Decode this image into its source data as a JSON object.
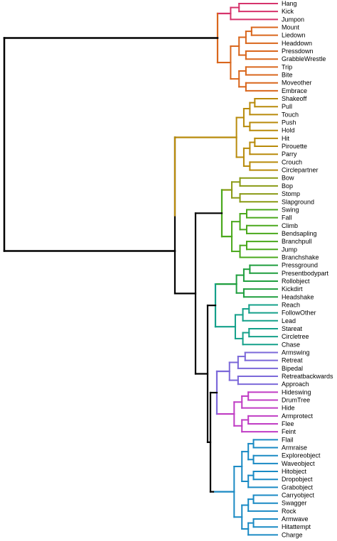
{
  "dendrogram": {
    "root_color": "#000000",
    "clusters": [
      {
        "name": "cluster-magenta-top",
        "color": "#d6336c",
        "leaves": [
          "Hang",
          "Kick",
          "Jumpon"
        ]
      },
      {
        "name": "cluster-orange",
        "color": "#d9661c",
        "leaves": [
          "Mount",
          "Liedown",
          "Headdown",
          "Pressdown",
          "GrabbleWrestle",
          "Trip",
          "Bite",
          "Moveother",
          "Embrace"
        ]
      },
      {
        "name": "cluster-ochre",
        "color": "#b88a0a",
        "leaves": [
          "Shakeoff",
          "Pull",
          "Touch",
          "Push",
          "Hold",
          "Hit",
          "Pirouette",
          "Parry",
          "Crouch",
          "Circlepartner"
        ]
      },
      {
        "name": "cluster-olive",
        "color": "#8a9a14",
        "leaves": [
          "Bow",
          "Bop",
          "Stomp",
          "Slapground"
        ]
      },
      {
        "name": "cluster-green",
        "color": "#4aa81c",
        "leaves": [
          "Swing",
          "Fall",
          "Climb",
          "Bendsapling",
          "Branchpull",
          "Jump",
          "Branchshake"
        ]
      },
      {
        "name": "cluster-emerald",
        "color": "#1f9e3e",
        "leaves": [
          "Pressground",
          "Presentbodypart",
          "Rollobject",
          "Kickdirt",
          "Headshake"
        ]
      },
      {
        "name": "cluster-teal",
        "color": "#14a08a",
        "leaves": [
          "Reach",
          "FollowOther",
          "Lead",
          "Stareat",
          "Circletree",
          "Chase"
        ]
      },
      {
        "name": "cluster-violet",
        "color": "#7b68d9",
        "leaves": [
          "Armswing",
          "Retreat",
          "Bipedal",
          "Retreatbackwards",
          "Approach"
        ]
      },
      {
        "name": "cluster-magenta",
        "color": "#c03cc4",
        "leaves": [
          "Hideswing",
          "DrumTree",
          "Hide",
          "Armprotect",
          "Flee",
          "Feint"
        ]
      },
      {
        "name": "cluster-blue",
        "color": "#1a8ac4",
        "leaves": [
          "Flail",
          "Armraise",
          "Exploreobject",
          "Waveobject",
          "Hitobject",
          "Dropobject",
          "Grabobject",
          "Carryobject",
          "Swagger",
          "Rock",
          "Armwave",
          "Hitattempt",
          "Charge"
        ]
      }
    ]
  }
}
